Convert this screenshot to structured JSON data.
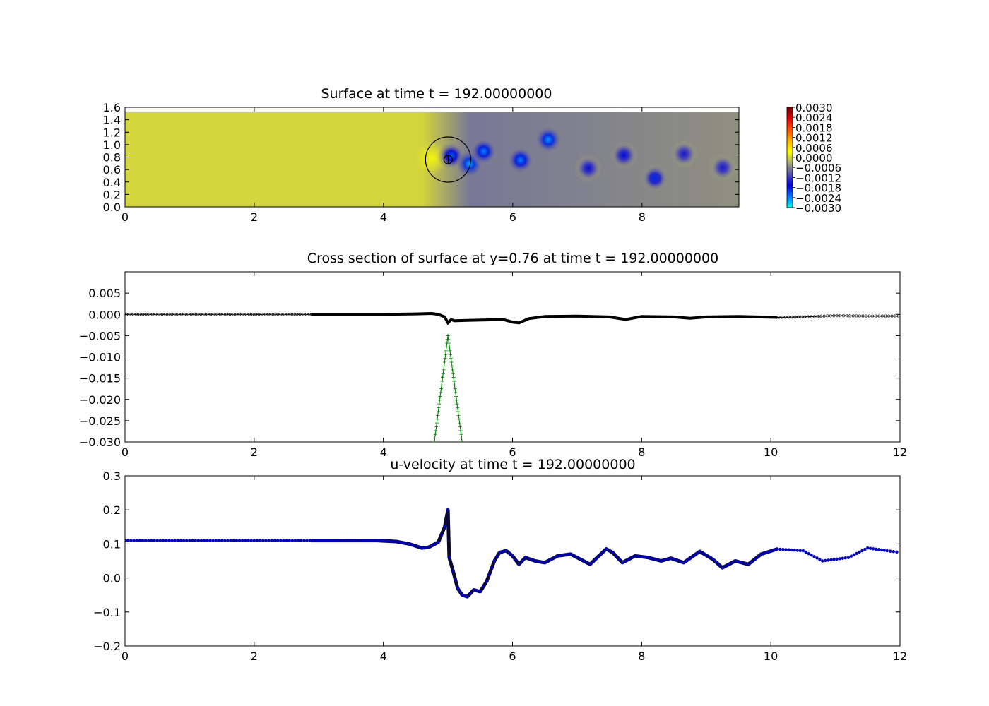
{
  "chart_data": [
    {
      "type": "heatmap",
      "title": "Surface at time t =   192.00000000",
      "xlim": [
        0,
        9.5
      ],
      "ylim": [
        0,
        1.6
      ],
      "x_ticks": [
        "0",
        "2",
        "4",
        "6",
        "8"
      ],
      "y_ticks": [
        "0.0",
        "0.2",
        "0.4",
        "0.6",
        "0.8",
        "1.0",
        "1.2",
        "1.4",
        "1.6"
      ],
      "data_extent": {
        "x": [
          0,
          9.5
        ],
        "y": [
          0,
          1.52
        ]
      },
      "colorbar": {
        "range": [
          -0.003,
          0.003
        ],
        "ticks": [
          "0.0030",
          "0.0024",
          "0.0018",
          "0.0012",
          "0.0006",
          "0.0000",
          "−0.0006",
          "−0.0012",
          "−0.0018",
          "−0.0024",
          "−0.0030"
        ],
        "colors": [
          "#00ffff",
          "#0077ff",
          "#0000d8",
          "#5050b0",
          "#a8a878",
          "#ffff00",
          "#ffb000",
          "#ff5000",
          "#e00000",
          "#700000"
        ]
      },
      "features": {
        "obstacle": {
          "cx": 5.0,
          "cy": 0.76,
          "r_outer": 0.35,
          "r_inner": 0.065
        },
        "warm_region": {
          "cx": 4.75,
          "cy": 0.78,
          "r": 0.25,
          "value": 0.0003
        },
        "wake": {
          "x_start": 4.6,
          "value": -0.0007
        },
        "vortices": [
          {
            "x": 5.05,
            "y": 0.82,
            "v": -0.0022
          },
          {
            "x": 5.33,
            "y": 0.69,
            "v": -0.0026
          },
          {
            "x": 5.55,
            "y": 0.89,
            "v": -0.0024
          },
          {
            "x": 6.12,
            "y": 0.75,
            "v": -0.0024
          },
          {
            "x": 6.55,
            "y": 1.08,
            "v": -0.0025
          },
          {
            "x": 7.17,
            "y": 0.62,
            "v": -0.0016
          },
          {
            "x": 7.72,
            "y": 0.83,
            "v": -0.0017
          },
          {
            "x": 8.2,
            "y": 0.46,
            "v": -0.0019
          },
          {
            "x": 8.65,
            "y": 0.85,
            "v": -0.0015
          },
          {
            "x": 9.25,
            "y": 0.63,
            "v": -0.0015
          }
        ]
      }
    },
    {
      "type": "line",
      "title": "Cross section of surface at y=0.76 at time t =   192.00000000",
      "xlim": [
        0,
        12
      ],
      "ylim": [
        -0.03,
        0.01
      ],
      "x_ticks": [
        "0",
        "2",
        "4",
        "6",
        "8",
        "10",
        "12"
      ],
      "y_ticks": [
        "0.005",
        "0.000",
        "−0.005",
        "−0.010",
        "−0.015",
        "−0.020",
        "−0.025",
        "−0.030"
      ],
      "series": [
        {
          "color": "#000000",
          "marker": "x",
          "x": [
            0,
            1,
            2,
            2.88,
            4,
            4.5,
            4.75,
            4.85,
            4.95,
            5.0,
            5.05,
            5.1,
            5.3,
            5.6,
            5.85,
            6.0,
            6.1,
            6.25,
            6.5,
            7.0,
            7.5,
            7.75,
            8.0,
            8.5,
            8.75,
            9.0,
            9.5,
            10.1,
            10.5,
            11.0,
            11.5,
            12.0
          ],
          "y": [
            0.0,
            0.0,
            0.0,
            0.0,
            0.0,
            0.0001,
            0.0002,
            0.0,
            -0.0006,
            -0.002,
            -0.0012,
            -0.0015,
            -0.0014,
            -0.0013,
            -0.0012,
            -0.0018,
            -0.002,
            -0.001,
            -0.0005,
            -0.0004,
            -0.0006,
            -0.0012,
            -0.0005,
            -0.0006,
            -0.0009,
            -0.0006,
            -0.0005,
            -0.0007,
            -0.0006,
            -0.0003,
            -0.0004,
            -0.0004
          ]
        },
        {
          "color": "#008000",
          "marker": "+",
          "x": [
            4.79,
            5.0,
            5.22
          ],
          "y": [
            -0.03,
            -0.005,
            -0.03
          ]
        }
      ]
    },
    {
      "type": "scatter",
      "title": "u-velocity at time t =   192.00000000",
      "xlim": [
        0,
        12
      ],
      "ylim": [
        -0.2,
        0.3
      ],
      "x_ticks": [
        "0",
        "2",
        "4",
        "6",
        "8",
        "10",
        "12"
      ],
      "y_ticks": [
        "0.3",
        "0.2",
        "0.1",
        "0.0",
        "−0.1",
        "−0.2"
      ],
      "series": [
        {
          "color": "#0000bb",
          "x": [
            0,
            2,
            3,
            3.9,
            4.2,
            4.4,
            4.6,
            4.7,
            4.85,
            4.95,
            5.0,
            5.02,
            5.08,
            5.15,
            5.22,
            5.3,
            5.4,
            5.5,
            5.6,
            5.72,
            5.8,
            5.9,
            6.0,
            6.1,
            6.2,
            6.35,
            6.5,
            6.7,
            6.9,
            7.0,
            7.2,
            7.45,
            7.55,
            7.7,
            7.9,
            8.1,
            8.3,
            8.45,
            8.65,
            8.9,
            9.1,
            9.25,
            9.45,
            9.65,
            9.85,
            10.1,
            10.5,
            10.8,
            11.2,
            11.5,
            11.8,
            12.0
          ],
          "y": [
            0.11,
            0.11,
            0.11,
            0.11,
            0.107,
            0.1,
            0.088,
            0.09,
            0.105,
            0.15,
            0.2,
            0.06,
            0.02,
            -0.03,
            -0.05,
            -0.055,
            -0.035,
            -0.04,
            -0.01,
            0.05,
            0.075,
            0.08,
            0.065,
            0.04,
            0.06,
            0.05,
            0.045,
            0.065,
            0.07,
            0.06,
            0.04,
            0.085,
            0.075,
            0.045,
            0.065,
            0.06,
            0.05,
            0.058,
            0.045,
            0.078,
            0.055,
            0.03,
            0.05,
            0.04,
            0.07,
            0.085,
            0.08,
            0.05,
            0.06,
            0.088,
            0.08,
            0.075
          ]
        }
      ]
    }
  ]
}
